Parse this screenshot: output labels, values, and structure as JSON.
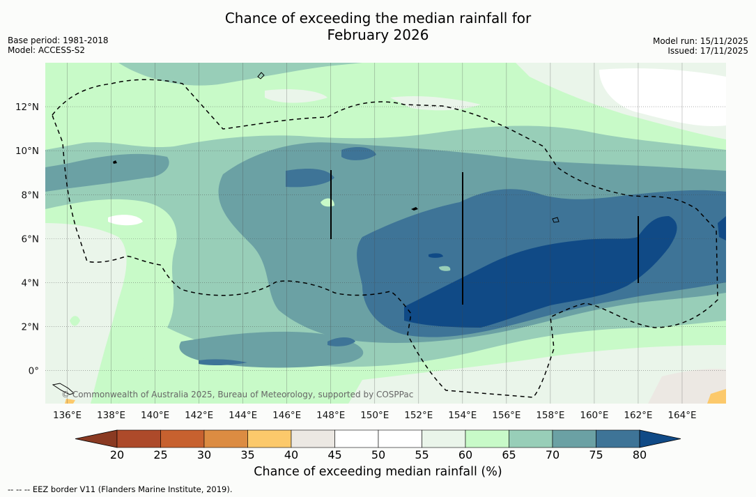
{
  "title": {
    "line1": "Chance of exceeding the median rainfall for",
    "line2": "February 2026"
  },
  "meta": {
    "base_period": "Base period: 1981-2018",
    "model": "Model: ACCESS-S2",
    "model_run": "Model run: 15/11/2025",
    "issued": "Issued: 17/11/2025"
  },
  "map": {
    "lon_range": [
      135,
      166
    ],
    "lat_range": [
      -1.5,
      14
    ],
    "lon_ticks": [
      136,
      138,
      140,
      142,
      144,
      146,
      148,
      150,
      152,
      154,
      156,
      158,
      160,
      162,
      164
    ],
    "lat_ticks": [
      0,
      2,
      4,
      6,
      8,
      10,
      12
    ],
    "lon_tick_labels": [
      "136°E",
      "138°E",
      "140°E",
      "142°E",
      "144°E",
      "146°E",
      "148°E",
      "150°E",
      "152°E",
      "154°E",
      "156°E",
      "158°E",
      "160°E",
      "162°E",
      "164°E"
    ],
    "lat_tick_labels": [
      "0°",
      "2°N",
      "4°N",
      "6°N",
      "8°N",
      "10°N",
      "12°N"
    ],
    "copyright": "© Commonwealth of Australia 2025, Bureau of Meteorology, supported by COSPPac"
  },
  "colorbar": {
    "levels": [
      20,
      25,
      30,
      35,
      40,
      45,
      50,
      55,
      60,
      65,
      70,
      75,
      80
    ],
    "level_labels": [
      "20",
      "25",
      "30",
      "35",
      "40",
      "45",
      "50",
      "55",
      "60",
      "65",
      "70",
      "75",
      "80"
    ],
    "colors": [
      "#8a3a22",
      "#ad4a2a",
      "#c7612f",
      "#dc8c42",
      "#fcc96b",
      "#ece8e3",
      "#ffffff",
      "#ffffff",
      "#eaf5ea",
      "#c8fac8",
      "#98ceb8",
      "#6ba1a4",
      "#3e7497",
      "#104a86"
    ],
    "title": "Chance of exceeding median rainfall (%)"
  },
  "legend": {
    "eez": "--  --  -- EEZ border V11 (Flanders Marine Institute, 2019)."
  }
}
